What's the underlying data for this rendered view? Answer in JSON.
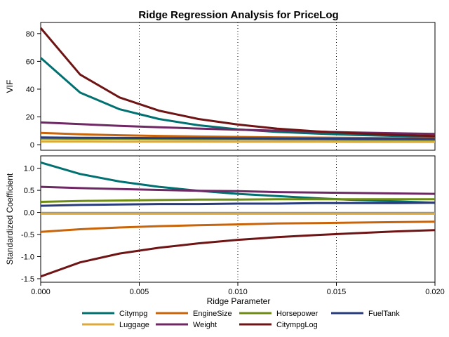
{
  "chart_data": {
    "type": "line",
    "title": "Ridge Regression Analysis for PriceLog",
    "xlabel": "Ridge Parameter",
    "x": [
      0,
      0.002,
      0.004,
      0.006,
      0.008,
      0.01,
      0.012,
      0.014,
      0.016,
      0.018,
      0.02
    ],
    "x_ticks": [
      0,
      0.005,
      0.01,
      0.015,
      0.02
    ],
    "x_tick_labels": [
      "0.000",
      "0.005",
      "0.010",
      "0.015",
      "0.020"
    ],
    "xlim": [
      0,
      0.02
    ],
    "reference_lines_x": [
      0.005,
      0.01,
      0.015,
      0.02
    ],
    "legend_position": "bottom",
    "series_colors": {
      "Citympg": "#007070",
      "EngineSize": "#c8640a",
      "Horsepower": "#6e8c14",
      "FuelTank": "#283c7d",
      "Luggage": "#dcaa3c",
      "Weight": "#6e2864",
      "CitympgLog": "#6e1414"
    },
    "legend": [
      "Citympg",
      "EngineSize",
      "Horsepower",
      "FuelTank",
      "Luggage",
      "Weight",
      "CitympgLog"
    ],
    "panels": [
      {
        "ylabel": "VIF",
        "ylim": [
          -4,
          88
        ],
        "y_ticks": [
          0,
          20,
          40,
          60,
          80
        ],
        "y_tick_labels": [
          "0",
          "20",
          "40",
          "60",
          "80"
        ],
        "series": [
          {
            "name": "Citympg",
            "values": [
              62.5,
              37.5,
              25.5,
              18.5,
              14,
              11,
              9.2,
              8,
              7,
              6.3,
              5.8
            ]
          },
          {
            "name": "EngineSize",
            "values": [
              8.5,
              7.5,
              6.8,
              6.3,
              5.9,
              5.6,
              5.3,
              5.1,
              4.9,
              4.7,
              4.5
            ]
          },
          {
            "name": "Horsepower",
            "values": [
              4.5,
              4.3,
              4.2,
              4.1,
              4.0,
              3.9,
              3.8,
              3.7,
              3.6,
              3.5,
              3.4
            ]
          },
          {
            "name": "FuelTank",
            "values": [
              5.2,
              5.0,
              4.9,
              4.8,
              4.7,
              4.6,
              4.5,
              4.4,
              4.3,
              4.2,
              4.1
            ]
          },
          {
            "name": "Luggage",
            "values": [
              2.3,
              2.3,
              2.2,
              2.2,
              2.2,
              2.1,
              2.1,
              2.1,
              2.0,
              2.0,
              2.0
            ]
          },
          {
            "name": "Weight",
            "values": [
              16,
              14.8,
              13.6,
              12.6,
              11.6,
              10.8,
              10.1,
              9.4,
              8.8,
              8.3,
              7.8
            ]
          },
          {
            "name": "CitympgLog",
            "values": [
              84,
              50.5,
              34,
              24.5,
              18.5,
              14.5,
              11.5,
              9.6,
              8.2,
              7,
              6.2
            ]
          }
        ]
      },
      {
        "ylabel": "Standardized Coefficient",
        "ylim": [
          -1.58,
          1.28
        ],
        "y_ticks": [
          -1.5,
          -1.0,
          -0.5,
          0.0,
          0.5,
          1.0
        ],
        "y_tick_labels": [
          "-1.5",
          "-1.0",
          "-0.5",
          "0.0",
          "0.5",
          "1.0"
        ],
        "zero_line": true,
        "series": [
          {
            "name": "Citympg",
            "values": [
              1.13,
              0.87,
              0.7,
              0.58,
              0.49,
              0.42,
              0.37,
              0.32,
              0.28,
              0.25,
              0.22
            ]
          },
          {
            "name": "EngineSize",
            "values": [
              -0.44,
              -0.38,
              -0.34,
              -0.31,
              -0.29,
              -0.27,
              -0.25,
              -0.24,
              -0.23,
              -0.22,
              -0.21
            ]
          },
          {
            "name": "Horsepower",
            "values": [
              0.24,
              0.26,
              0.27,
              0.28,
              0.29,
              0.29,
              0.3,
              0.3,
              0.3,
              0.3,
              0.3
            ]
          },
          {
            "name": "FuelTank",
            "values": [
              0.15,
              0.17,
              0.18,
              0.19,
              0.19,
              0.2,
              0.2,
              0.21,
              0.21,
              0.21,
              0.22
            ]
          },
          {
            "name": "Luggage",
            "values": [
              -0.03,
              -0.03,
              -0.03,
              -0.03,
              -0.03,
              -0.03,
              -0.03,
              -0.03,
              -0.03,
              -0.03,
              -0.03
            ]
          },
          {
            "name": "Weight",
            "values": [
              0.58,
              0.55,
              0.53,
              0.51,
              0.49,
              0.48,
              0.46,
              0.45,
              0.44,
              0.43,
              0.42
            ]
          },
          {
            "name": "CitympgLog",
            "values": [
              -1.45,
              -1.13,
              -0.93,
              -0.8,
              -0.7,
              -0.62,
              -0.56,
              -0.51,
              -0.47,
              -0.43,
              -0.4
            ]
          }
        ]
      }
    ]
  }
}
